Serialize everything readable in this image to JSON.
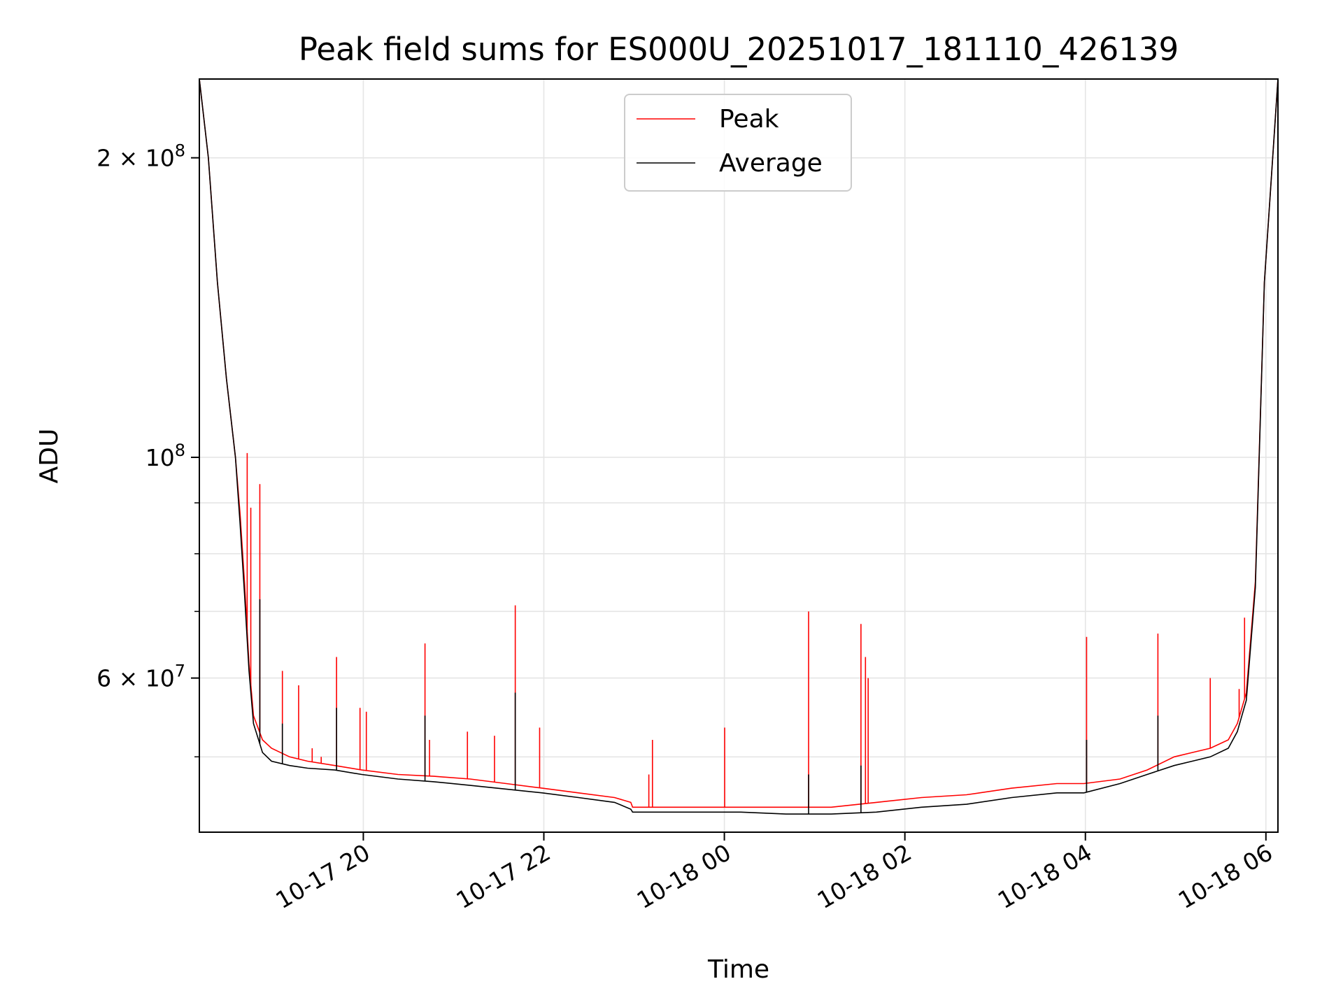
{
  "chart_data": {
    "type": "line",
    "title": "Peak field sums for ES000U_20251017_181110_426139",
    "xlabel": "Time",
    "ylabel": "ADU",
    "y_scale": "log",
    "x_unit": "hours since 10-17 18:11",
    "xlim": [
      0,
      11.95
    ],
    "ylim": [
      42000000,
      240000000
    ],
    "grid": true,
    "legend_position": "top-center",
    "x_ticks": [
      {
        "value": 1.8167,
        "label": "10-17 20"
      },
      {
        "value": 3.8167,
        "label": "10-17 22"
      },
      {
        "value": 5.8167,
        "label": "10-18 00"
      },
      {
        "value": 7.8167,
        "label": "10-18 02"
      },
      {
        "value": 9.8167,
        "label": "10-18 04"
      },
      {
        "value": 11.8167,
        "label": "10-18 06"
      }
    ],
    "y_major_ticks": [
      {
        "value": 60000000,
        "mantissa": "6",
        "exponent": "7"
      },
      {
        "value": 100000000,
        "mantissa": "",
        "exponent": "8"
      },
      {
        "value": 200000000,
        "mantissa": "2",
        "exponent": "8"
      }
    ],
    "y_minor_ticks": [
      50000000,
      70000000,
      80000000,
      90000000,
      300000000
    ],
    "series": [
      {
        "name": "Peak",
        "color": "#ff0000",
        "x": [
          0.0,
          0.1,
          0.2,
          0.3,
          0.4,
          0.45,
          0.5,
          0.55,
          0.6,
          0.7,
          0.8,
          1.0,
          1.2,
          1.5,
          1.8,
          2.2,
          2.6,
          3.0,
          3.4,
          3.8,
          4.2,
          4.6,
          4.78,
          4.8,
          5.0,
          5.5,
          6.0,
          6.5,
          7.0,
          7.5,
          8.0,
          8.5,
          9.0,
          9.5,
          9.8,
          10.2,
          10.5,
          10.8,
          11.0,
          11.2,
          11.4,
          11.5,
          11.6,
          11.7,
          11.8,
          11.95
        ],
        "y": [
          240000000,
          200000000,
          150000000,
          120000000,
          100000000,
          88000000,
          75000000,
          62000000,
          55000000,
          52000000,
          51000000,
          50000000,
          49500000,
          49000000,
          48500000,
          48000000,
          47800000,
          47500000,
          47000000,
          46500000,
          46000000,
          45500000,
          45000000,
          44500000,
          44500000,
          44500000,
          44500000,
          44500000,
          44500000,
          45000000,
          45500000,
          45800000,
          46500000,
          47000000,
          47000000,
          47500000,
          48500000,
          50000000,
          50500000,
          51000000,
          52000000,
          54000000,
          58000000,
          75000000,
          150000000,
          240000000
        ],
        "spikes": [
          {
            "x": 0.53,
            "y": 101000000
          },
          {
            "x": 0.57,
            "y": 89000000
          },
          {
            "x": 0.67,
            "y": 94000000
          },
          {
            "x": 0.92,
            "y": 61000000
          },
          {
            "x": 1.1,
            "y": 59000000
          },
          {
            "x": 1.25,
            "y": 51000000
          },
          {
            "x": 1.35,
            "y": 50000000
          },
          {
            "x": 1.52,
            "y": 63000000
          },
          {
            "x": 1.78,
            "y": 56000000
          },
          {
            "x": 1.85,
            "y": 55500000
          },
          {
            "x": 2.5,
            "y": 65000000
          },
          {
            "x": 2.55,
            "y": 52000000
          },
          {
            "x": 2.97,
            "y": 53000000
          },
          {
            "x": 3.27,
            "y": 52500000
          },
          {
            "x": 3.5,
            "y": 71000000
          },
          {
            "x": 3.77,
            "y": 53500000
          },
          {
            "x": 4.98,
            "y": 48000000
          },
          {
            "x": 5.02,
            "y": 52000000
          },
          {
            "x": 5.82,
            "y": 53500000
          },
          {
            "x": 6.75,
            "y": 70000000
          },
          {
            "x": 7.33,
            "y": 68000000
          },
          {
            "x": 7.38,
            "y": 63000000
          },
          {
            "x": 7.41,
            "y": 60000000
          },
          {
            "x": 9.83,
            "y": 66000000
          },
          {
            "x": 10.62,
            "y": 66500000
          },
          {
            "x": 11.2,
            "y": 60000000
          },
          {
            "x": 11.52,
            "y": 58500000
          },
          {
            "x": 11.58,
            "y": 69000000
          }
        ]
      },
      {
        "name": "Average",
        "color": "#000000",
        "x": [
          0.0,
          0.1,
          0.2,
          0.3,
          0.4,
          0.45,
          0.5,
          0.55,
          0.6,
          0.7,
          0.8,
          1.0,
          1.2,
          1.5,
          1.8,
          2.2,
          2.6,
          3.0,
          3.4,
          3.8,
          4.2,
          4.6,
          4.78,
          4.8,
          5.0,
          5.5,
          6.0,
          6.5,
          7.0,
          7.5,
          8.0,
          8.5,
          9.0,
          9.5,
          9.8,
          10.2,
          10.5,
          10.8,
          11.0,
          11.2,
          11.4,
          11.5,
          11.6,
          11.7,
          11.8,
          11.95
        ],
        "y": [
          240000000,
          200000000,
          150000000,
          120000000,
          100000000,
          86000000,
          73000000,
          61000000,
          54000000,
          50500000,
          49500000,
          49000000,
          48700000,
          48500000,
          48000000,
          47500000,
          47200000,
          46800000,
          46400000,
          46000000,
          45500000,
          45000000,
          44300000,
          44000000,
          44000000,
          44000000,
          44000000,
          43800000,
          43800000,
          44000000,
          44500000,
          44800000,
          45500000,
          46000000,
          46000000,
          47000000,
          48000000,
          49000000,
          49500000,
          50000000,
          51000000,
          53000000,
          57000000,
          74000000,
          150000000,
          240000000
        ],
        "spikes": [
          {
            "x": 0.67,
            "y": 72000000
          },
          {
            "x": 0.92,
            "y": 54000000
          },
          {
            "x": 1.52,
            "y": 56000000
          },
          {
            "x": 2.5,
            "y": 55000000
          },
          {
            "x": 3.5,
            "y": 58000000
          },
          {
            "x": 6.75,
            "y": 48000000
          },
          {
            "x": 7.33,
            "y": 49000000
          },
          {
            "x": 9.83,
            "y": 52000000
          },
          {
            "x": 10.62,
            "y": 55000000
          }
        ]
      }
    ]
  }
}
